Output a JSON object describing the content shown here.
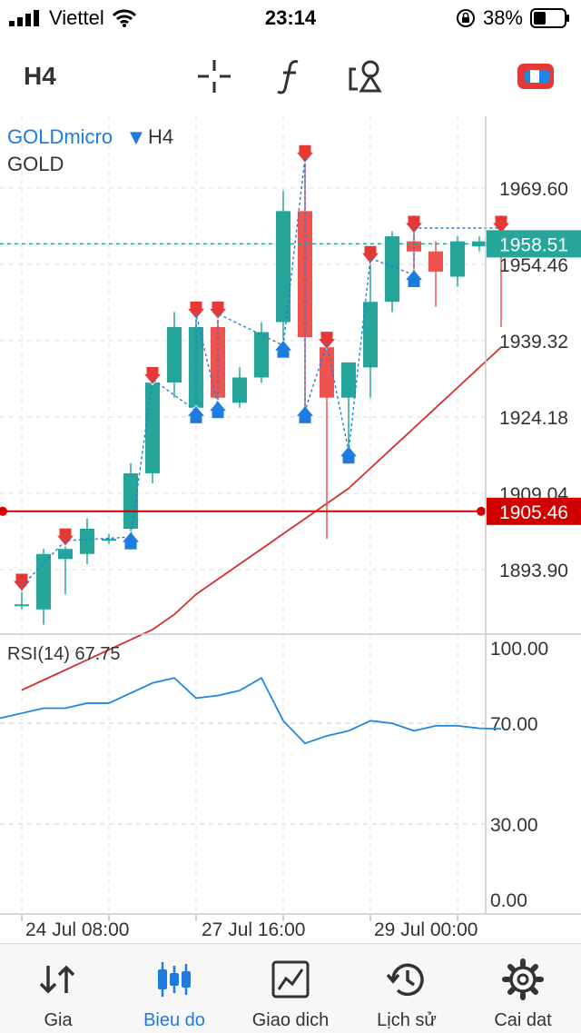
{
  "status_bar": {
    "carrier": "Viettel",
    "time": "23:14",
    "battery": "38%"
  },
  "toolbar": {
    "timeframe": "H4"
  },
  "chart": {
    "symbol": "GOLDmicro",
    "symbol_arrow": "▼",
    "timeframe": "H4",
    "description": "GOLD",
    "indicator_label": "RSI(14) 67.75",
    "colors": {
      "bull": "#26a69a",
      "bear": "#ef5350",
      "ma": "#d32f2f",
      "rsi": "#1e88e5",
      "signal_up": "#1e7be0",
      "signal_down": "#e53935"
    }
  },
  "chart_data": {
    "type": "candlestick",
    "price_axis": {
      "ticks": [
        "1969.60",
        "1954.46",
        "1939.32",
        "1924.18",
        "1909.04",
        "1893.90"
      ],
      "range": [
        1882,
        1982
      ]
    },
    "current_price": "1958.51",
    "level_line": "1905.46",
    "time_axis": [
      "24 Jul 08:00",
      "27 Jul 16:00",
      "29 Jul 00:00"
    ],
    "candles": [
      {
        "o": 1887,
        "h": 1891,
        "l": 1886,
        "c": 1887
      },
      {
        "o": 1886,
        "h": 1898,
        "l": 1883,
        "c": 1897
      },
      {
        "o": 1896,
        "h": 1900,
        "l": 1889,
        "c": 1898
      },
      {
        "o": 1897,
        "h": 1904,
        "l": 1895,
        "c": 1902
      },
      {
        "o": 1900,
        "h": 1901,
        "l": 1899,
        "c": 1900
      },
      {
        "o": 1902,
        "h": 1915,
        "l": 1900,
        "c": 1913
      },
      {
        "o": 1913,
        "h": 1932,
        "l": 1911,
        "c": 1931
      },
      {
        "o": 1931,
        "h": 1945,
        "l": 1928,
        "c": 1942
      },
      {
        "o": 1926,
        "h": 1945,
        "l": 1925,
        "c": 1942
      },
      {
        "o": 1942,
        "h": 1945,
        "l": 1926,
        "c": 1928
      },
      {
        "o": 1927,
        "h": 1934,
        "l": 1926,
        "c": 1932
      },
      {
        "o": 1932,
        "h": 1943,
        "l": 1931,
        "c": 1941
      },
      {
        "o": 1943,
        "h": 1969,
        "l": 1938,
        "c": 1965
      },
      {
        "o": 1965,
        "h": 1976,
        "l": 1925,
        "c": 1940
      },
      {
        "o": 1938,
        "h": 1939,
        "l": 1900,
        "c": 1928
      },
      {
        "o": 1928,
        "h": 1935,
        "l": 1917,
        "c": 1935
      },
      {
        "o": 1934,
        "h": 1956,
        "l": 1928,
        "c": 1947
      },
      {
        "o": 1947,
        "h": 1961,
        "l": 1945,
        "c": 1960
      },
      {
        "o": 1959,
        "h": 1962,
        "l": 1952,
        "c": 1957
      },
      {
        "o": 1957,
        "h": 1959,
        "l": 1946,
        "c": 1953
      },
      {
        "o": 1952,
        "h": 1960,
        "l": 1950,
        "c": 1959
      },
      {
        "o": 1958,
        "h": 1960,
        "l": 1957,
        "c": 1959
      },
      {
        "o": 1960,
        "h": 1962,
        "l": 1942,
        "c": 1959
      }
    ],
    "moving_average": [
      1870,
      1872,
      1874,
      1876,
      1878,
      1880,
      1882,
      1885,
      1889,
      1892,
      1895,
      1898,
      1901,
      1904,
      1907,
      1910,
      1914,
      1918,
      1922,
      1926,
      1930,
      1934,
      1938
    ],
    "rsi": {
      "levels": [
        "100.00",
        "70.00",
        "30.00",
        "0.00"
      ],
      "range": [
        0,
        100
      ],
      "value": "67.75",
      "values": [
        72,
        76,
        76,
        78,
        78,
        82,
        86,
        88,
        80,
        81,
        83,
        88,
        71,
        62,
        65,
        67,
        71,
        70,
        67,
        69,
        69,
        68,
        67.75
      ]
    }
  },
  "bottom_nav": [
    {
      "label": "Gia",
      "icon": "quotes-icon"
    },
    {
      "label": "Bieu do",
      "icon": "chart-icon",
      "active": true
    },
    {
      "label": "Giao dich",
      "icon": "trade-icon"
    },
    {
      "label": "Lịch sử",
      "icon": "history-icon"
    },
    {
      "label": "Cai dat",
      "icon": "settings-icon"
    }
  ]
}
